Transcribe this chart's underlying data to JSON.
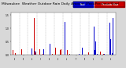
{
  "title": "Milwaukee  Weather Outdoor Rain Daily Amount (Past/Previous Year)",
  "title_fontsize": 3.2,
  "background_color": "#d8d8d8",
  "plot_bg_color": "#ffffff",
  "legend_blue_label": "Past",
  "legend_red_label": "Previous Year",
  "legend_blue_color": "#0000cc",
  "legend_red_color": "#cc0000",
  "ylim": [
    0,
    1.6
  ],
  "ytick_fontsize": 2.2,
  "xtick_fontsize": 1.6,
  "num_points": 365,
  "seed": 42,
  "bar_width": 1.0,
  "month_lengths": [
    31,
    28,
    31,
    30,
    31,
    30,
    31,
    31,
    30,
    31,
    30,
    31
  ],
  "month_names": [
    "Jan",
    "Feb",
    "Mar",
    "Apr",
    "May",
    "Jun",
    "Jul",
    "Aug",
    "Sep",
    "Oct",
    "Nov",
    "Dec"
  ]
}
